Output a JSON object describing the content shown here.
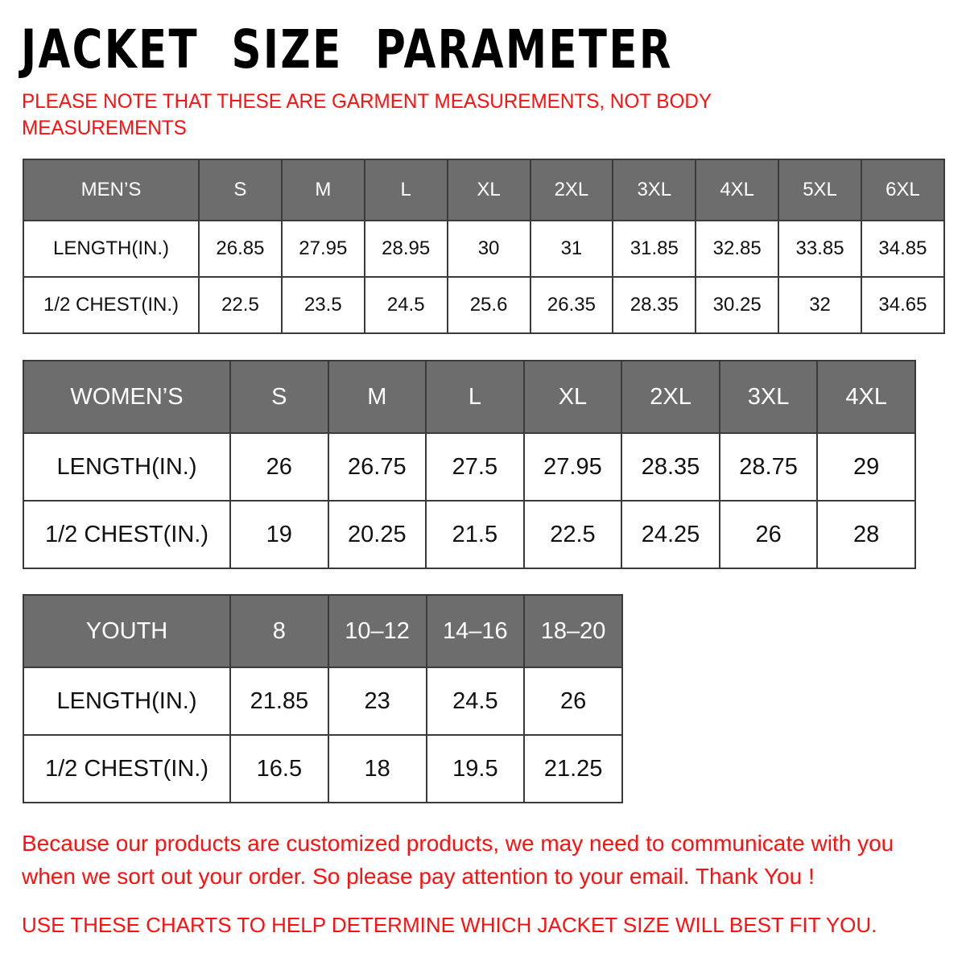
{
  "title": "JACKET  SIZE  PARAMETER",
  "note": "PLEASE NOTE THAT THESE ARE GARMENT MEASUREMENTS, NOT BODY MEASUREMENTS",
  "colors": {
    "header_bg": "#6d6d6d",
    "accent_red": "#ff1010"
  },
  "tables": {
    "men": {
      "header": [
        "MEN’S",
        "S",
        "M",
        "L",
        "XL",
        "2XL",
        "3XL",
        "4XL",
        "5XL",
        "6XL"
      ],
      "rows": [
        [
          "LENGTH(IN.)",
          "26.85",
          "27.95",
          "28.95",
          "30",
          "31",
          "31.85",
          "32.85",
          "33.85",
          "34.85"
        ],
        [
          "1/2 CHEST(IN.)",
          "22.5",
          "23.5",
          "24.5",
          "25.6",
          "26.35",
          "28.35",
          "30.25",
          "32",
          "34.65"
        ]
      ]
    },
    "women": {
      "header": [
        "WOMEN’S",
        "S",
        "M",
        "L",
        "XL",
        "2XL",
        "3XL",
        "4XL"
      ],
      "rows": [
        [
          "LENGTH(IN.)",
          "26",
          "26.75",
          "27.5",
          "27.95",
          "28.35",
          "28.75",
          "29"
        ],
        [
          "1/2 CHEST(IN.)",
          "19",
          "20.25",
          "21.5",
          "22.5",
          "24.25",
          "26",
          "28"
        ]
      ]
    },
    "youth": {
      "header": [
        "YOUTH",
        "8",
        "10–12",
        "14–16",
        "18–20"
      ],
      "rows": [
        [
          "LENGTH(IN.)",
          "21.85",
          "23",
          "24.5",
          "26"
        ],
        [
          "1/2 CHEST(IN.)",
          "16.5",
          "18",
          "19.5",
          "21.25"
        ]
      ]
    }
  },
  "footer": {
    "message_line1": "Because our products are customized products, we may need to communicate with you",
    "message_line2": "when we sort out your order. So please pay attention to your email. Thank You !",
    "instruction": "USE THESE CHARTS TO HELP DETERMINE WHICH JACKET SIZE WILL BEST FIT YOU."
  }
}
